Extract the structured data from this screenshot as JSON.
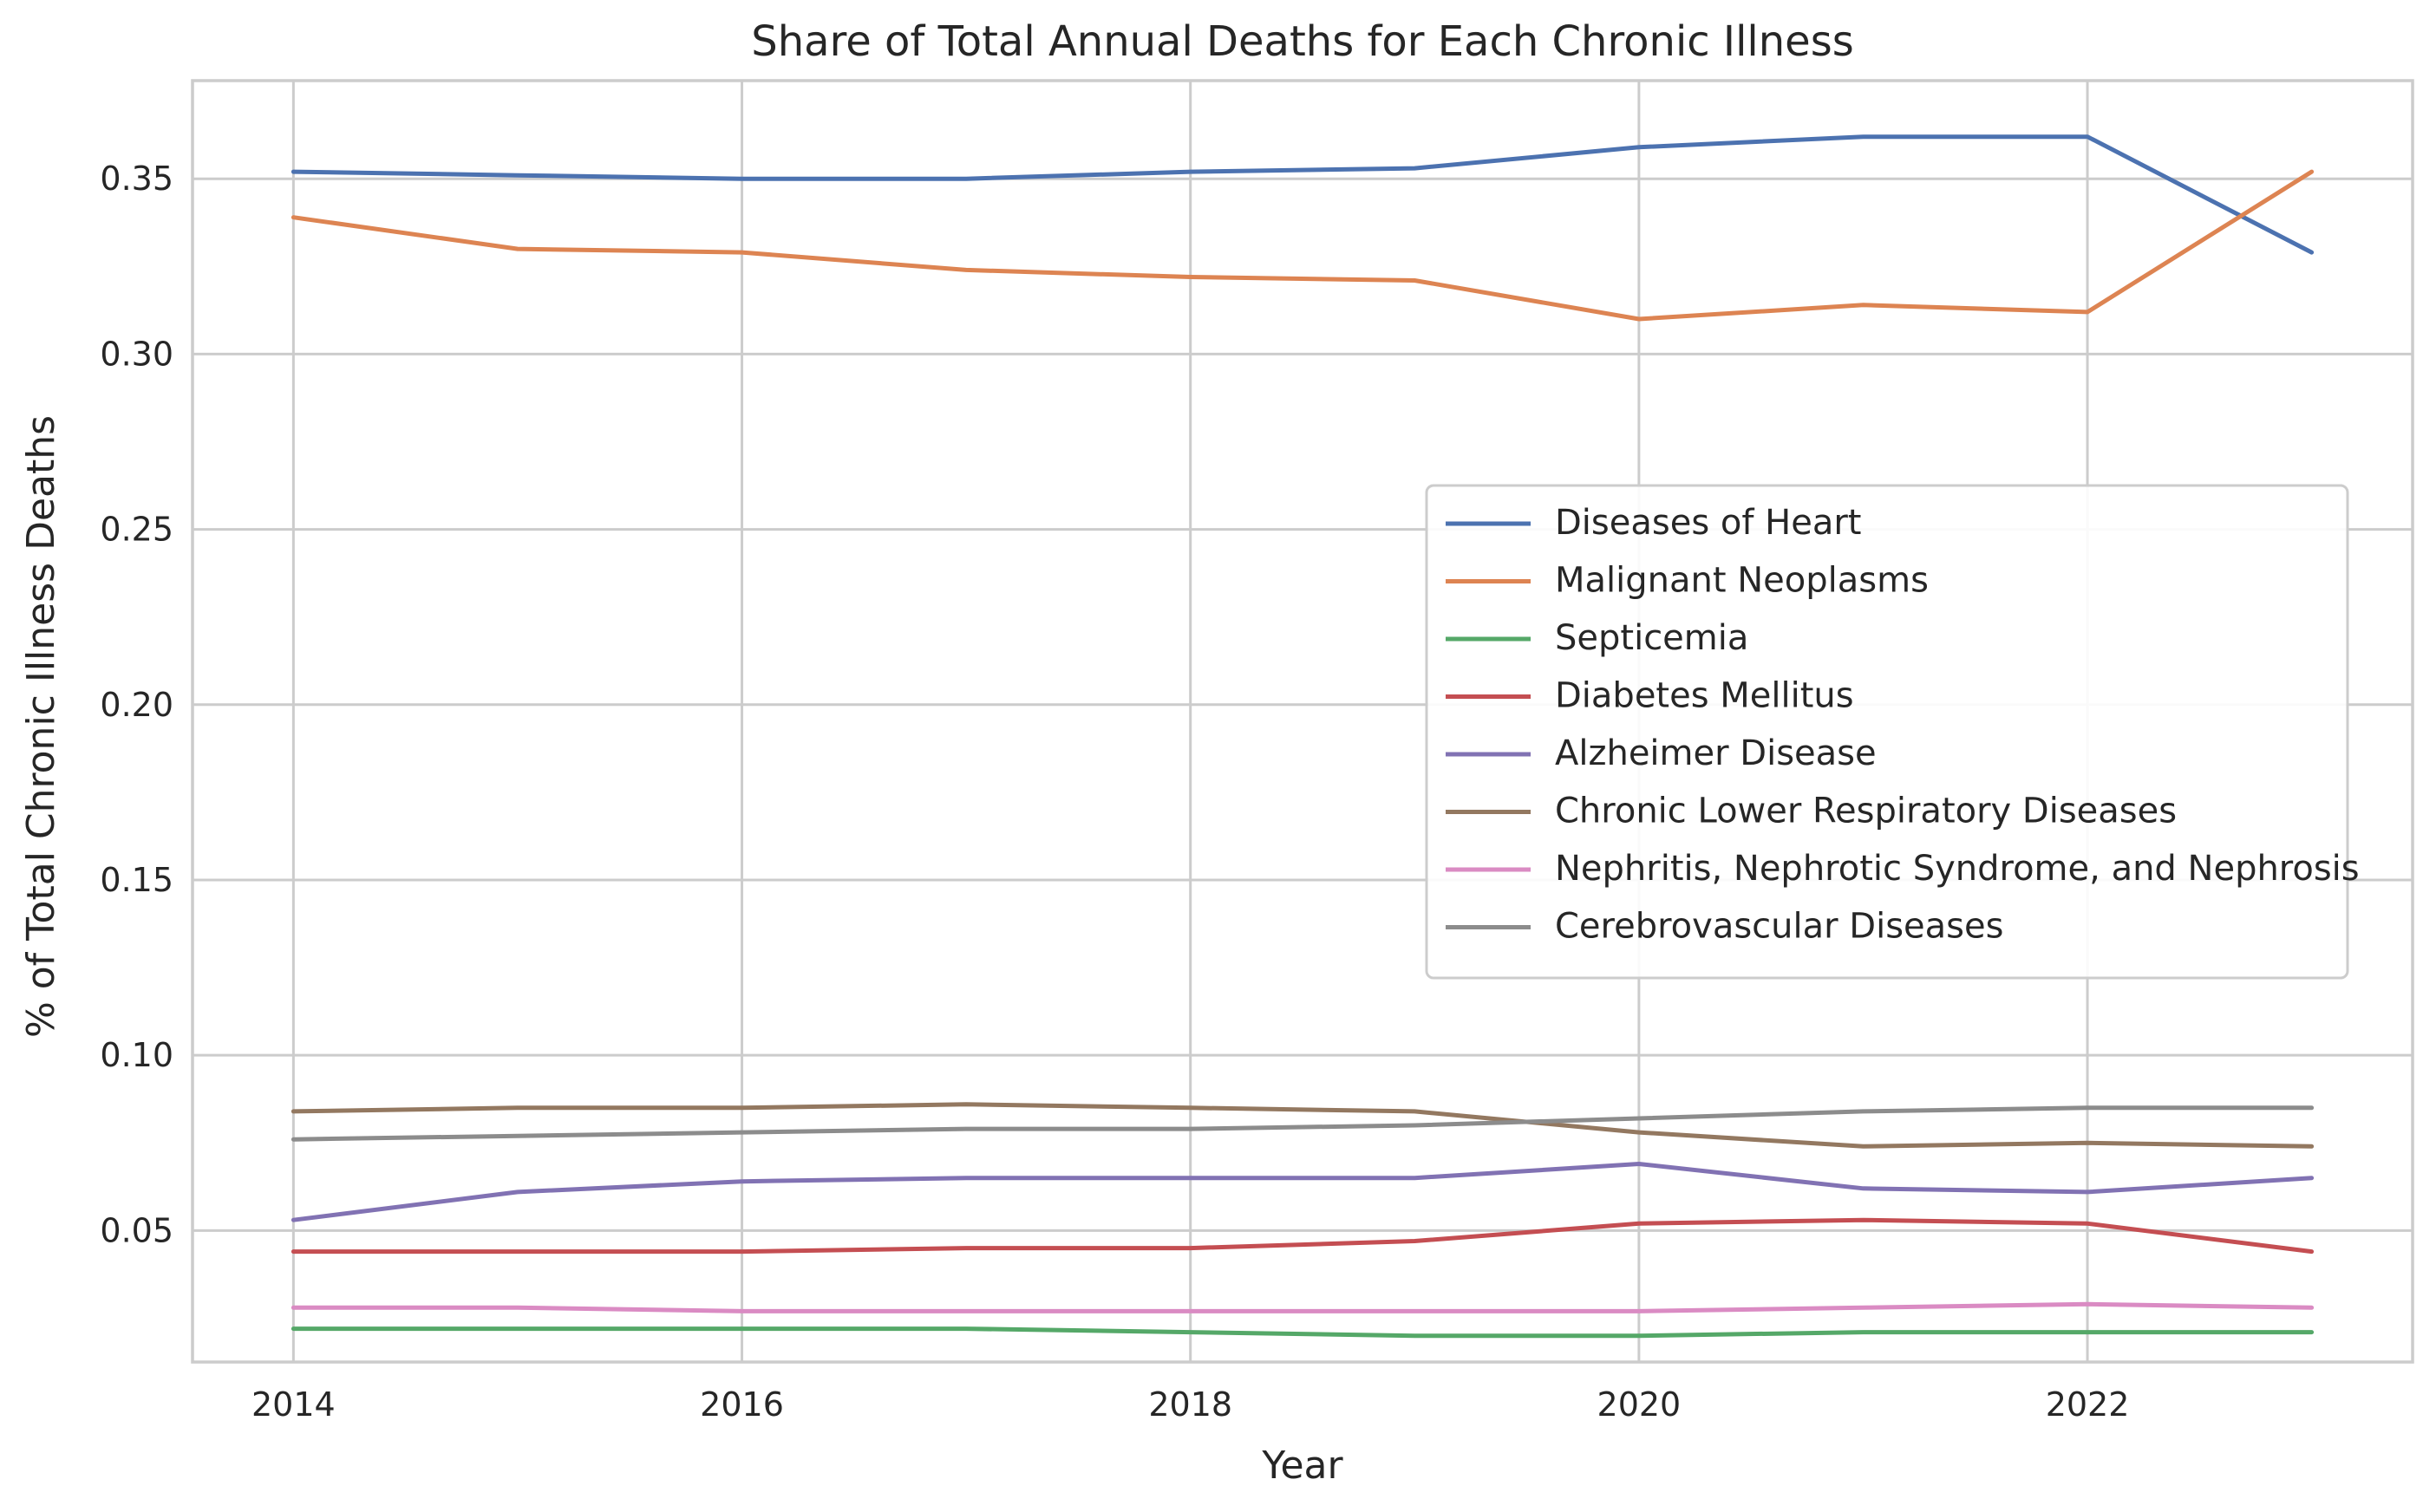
{
  "chart_data": {
    "type": "line",
    "title": "Share of Total Annual Deaths for Each Chronic Illness",
    "xlabel": "Year",
    "ylabel": "% of Total Chronic Illness Deaths",
    "x": [
      2014,
      2015,
      2016,
      2017,
      2018,
      2019,
      2020,
      2021,
      2022,
      2023
    ],
    "xlim": [
      2013.55,
      2023.45
    ],
    "ylim": [
      0.0125,
      0.378
    ],
    "xticks": [
      2014,
      2016,
      2018,
      2020,
      2022
    ],
    "yticks": [
      0.05,
      0.1,
      0.15,
      0.2,
      0.25,
      0.3,
      0.35
    ],
    "ytick_labels": [
      "0.05",
      "0.10",
      "0.15",
      "0.20",
      "0.25",
      "0.30",
      "0.35"
    ],
    "grid": true,
    "legend_position": "center-right",
    "series": [
      {
        "name": "Diseases of Heart",
        "color": "#4c72b0",
        "values": [
          0.352,
          0.351,
          0.35,
          0.35,
          0.352,
          0.353,
          0.359,
          0.362,
          0.362,
          0.329
        ]
      },
      {
        "name": "Malignant Neoplasms",
        "color": "#dd8452",
        "values": [
          0.339,
          0.33,
          0.329,
          0.324,
          0.322,
          0.321,
          0.31,
          0.314,
          0.312,
          0.352
        ]
      },
      {
        "name": "Septicemia",
        "color": "#55a868",
        "values": [
          0.022,
          0.022,
          0.022,
          0.022,
          0.021,
          0.02,
          0.02,
          0.021,
          0.021,
          0.021
        ]
      },
      {
        "name": "Diabetes Mellitus",
        "color": "#c44e52",
        "values": [
          0.044,
          0.044,
          0.044,
          0.045,
          0.045,
          0.047,
          0.052,
          0.053,
          0.052,
          0.044
        ]
      },
      {
        "name": "Alzheimer Disease",
        "color": "#8172b3",
        "values": [
          0.053,
          0.061,
          0.064,
          0.065,
          0.065,
          0.065,
          0.069,
          0.062,
          0.061,
          0.065
        ]
      },
      {
        "name": "Chronic Lower Respiratory Diseases",
        "color": "#937860",
        "values": [
          0.084,
          0.085,
          0.085,
          0.086,
          0.085,
          0.084,
          0.078,
          0.074,
          0.075,
          0.074
        ]
      },
      {
        "name": "Nephritis, Nephrotic Syndrome, and Nephrosis",
        "color": "#da8bc3",
        "values": [
          0.028,
          0.028,
          0.027,
          0.027,
          0.027,
          0.027,
          0.027,
          0.028,
          0.029,
          0.028
        ]
      },
      {
        "name": "Cerebrovascular Diseases",
        "color": "#8c8c8c",
        "values": [
          0.076,
          0.077,
          0.078,
          0.079,
          0.079,
          0.08,
          0.082,
          0.084,
          0.085,
          0.085
        ]
      }
    ]
  }
}
